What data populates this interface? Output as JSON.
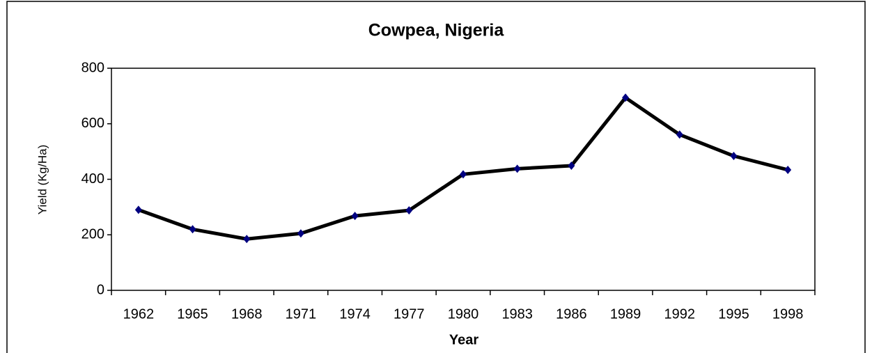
{
  "chart_data": {
    "type": "line",
    "title": "Cowpea, Nigeria",
    "x_label": "Year",
    "y_label": "Yield (Kg/Ha)",
    "categories": [
      "1962",
      "1965",
      "1968",
      "1971",
      "1974",
      "1977",
      "1980",
      "1983",
      "1986",
      "1989",
      "1992",
      "1995",
      "1998"
    ],
    "values": [
      290,
      220,
      185,
      205,
      268,
      288,
      418,
      438,
      449,
      694,
      561,
      484,
      434
    ],
    "color": "#000000",
    "marker_color": "#000080",
    "ylim": [
      0,
      800
    ],
    "yticks": [
      0,
      200,
      400,
      600,
      800
    ],
    "grid": false
  }
}
